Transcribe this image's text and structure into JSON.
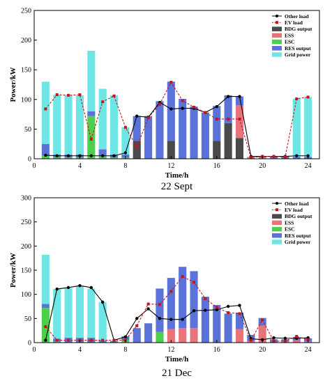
{
  "legend_labels": [
    "Other load",
    "EV load",
    "BDG output",
    "ESS",
    "ESC",
    "RES output",
    "Grid power"
  ],
  "colors": {
    "bdg": "#4a4a4a",
    "ess": "#e8737a",
    "esc": "#4ccf4a",
    "res": "#5b73d8",
    "grid": "#6fe6e6",
    "other_load": "#000000",
    "ev_load": "#c0171c",
    "frame": "#000000"
  },
  "chart_data": [
    {
      "type": "bar",
      "caption": "22 Sept",
      "xlabel": "Time/h",
      "ylabel": "Power/kW",
      "xlim": [
        0,
        25
      ],
      "ylim": [
        0,
        250
      ],
      "xticks": [
        0,
        4,
        8,
        12,
        16,
        20,
        24
      ],
      "yticks": [
        0,
        50,
        100,
        150,
        200,
        250
      ],
      "legend_position": "top-right",
      "categories": [
        1,
        2,
        3,
        4,
        5,
        6,
        7,
        8,
        9,
        10,
        11,
        12,
        13,
        14,
        15,
        16,
        17,
        18,
        19,
        20,
        21,
        22,
        23,
        24
      ],
      "stack_series": [
        {
          "key": "bdg",
          "name": "BDG output",
          "values": [
            0,
            0,
            0,
            0,
            0,
            0,
            0,
            0,
            30,
            0,
            0,
            30,
            0,
            0,
            0,
            30,
            60,
            35,
            0,
            0,
            0,
            0,
            0,
            0
          ]
        },
        {
          "key": "ess",
          "name": "ESS",
          "values": [
            0,
            0,
            0,
            0,
            0,
            0,
            0,
            0,
            0,
            0,
            0,
            0,
            0,
            0,
            0,
            0,
            0,
            55,
            2,
            2,
            0,
            0,
            0,
            0
          ]
        },
        {
          "key": "esc",
          "name": "ESC",
          "values": [
            5,
            3,
            2,
            2,
            72,
            4,
            2,
            2,
            0,
            0,
            0,
            0,
            0,
            0,
            0,
            0,
            0,
            0,
            0,
            0,
            0,
            0,
            0,
            0
          ]
        },
        {
          "key": "res",
          "name": "RES output",
          "values": [
            20,
            4,
            5,
            5,
            8,
            12,
            5,
            5,
            42,
            72,
            97,
            100,
            101,
            88,
            78,
            59,
            47,
            15,
            1,
            2,
            4,
            4,
            3,
            3
          ]
        },
        {
          "key": "grid",
          "name": "Grid power",
          "values": [
            105,
            101,
            100,
            100,
            102,
            102,
            100,
            46,
            0,
            0,
            0,
            0,
            0,
            0,
            0,
            0,
            0,
            0,
            0,
            0,
            0,
            0,
            98,
            101
          ]
        }
      ],
      "line_series": [
        {
          "key": "other_load",
          "name": "Other load",
          "marker": "circle",
          "style": "solid",
          "values": [
            6,
            5,
            5,
            5,
            5,
            5,
            5,
            10,
            72,
            70,
            95,
            84,
            85,
            85,
            78,
            88,
            105,
            105,
            4,
            4,
            4,
            4,
            5,
            5
          ]
        },
        {
          "key": "ev_load",
          "name": "EV load",
          "marker": "square",
          "style": "dashed",
          "values": [
            84,
            108,
            107,
            108,
            33,
            96,
            106,
            53,
            20,
            69,
            92,
            129,
            98,
            87,
            78,
            67,
            67,
            67,
            2,
            4,
            4,
            3,
            101,
            104
          ]
        }
      ]
    },
    {
      "type": "bar",
      "caption": "21 Dec",
      "xlabel": "Time/h",
      "ylabel": "Power/kW",
      "xlim": [
        0,
        25
      ],
      "ylim": [
        0,
        300
      ],
      "xticks": [
        0,
        4,
        8,
        12,
        16,
        20,
        24
      ],
      "yticks": [
        0,
        50,
        100,
        150,
        200,
        250,
        300
      ],
      "legend_position": "top-right",
      "categories": [
        1,
        2,
        3,
        4,
        5,
        6,
        7,
        8,
        9,
        10,
        11,
        12,
        13,
        14,
        15,
        16,
        17,
        18,
        19,
        20,
        21,
        22,
        23,
        24
      ],
      "stack_series": [
        {
          "key": "bdg",
          "name": "BDG output",
          "values": [
            0,
            0,
            0,
            0,
            0,
            0,
            0,
            0,
            0,
            0,
            0,
            0,
            0,
            0,
            0,
            0,
            0,
            0,
            0,
            0,
            0,
            0,
            0,
            0
          ]
        },
        {
          "key": "ess",
          "name": "ESS",
          "values": [
            0,
            0,
            0,
            0,
            0,
            0,
            0,
            0,
            0,
            0,
            0,
            28,
            30,
            30,
            0,
            0,
            0,
            28,
            3,
            35,
            0,
            2,
            5,
            2
          ]
        },
        {
          "key": "esc",
          "name": "ESC",
          "values": [
            72,
            2,
            0,
            0,
            0,
            0,
            0,
            5,
            0,
            0,
            22,
            0,
            0,
            0,
            0,
            0,
            0,
            0,
            0,
            0,
            0,
            0,
            0,
            0
          ]
        },
        {
          "key": "res",
          "name": "RES output",
          "values": [
            8,
            6,
            10,
            10,
            10,
            4,
            3,
            8,
            30,
            40,
            90,
            106,
            127,
            118,
            95,
            78,
            60,
            34,
            13,
            16,
            7,
            5,
            6,
            7
          ]
        },
        {
          "key": "grid",
          "name": "Grid power",
          "values": [
            102,
            103,
            103,
            107,
            102,
            80,
            0,
            0,
            0,
            0,
            0,
            0,
            0,
            0,
            0,
            0,
            0,
            0,
            0,
            0,
            0,
            0,
            0,
            0
          ]
        }
      ],
      "line_series": [
        {
          "key": "other_load",
          "name": "Other load",
          "marker": "circle",
          "style": "solid",
          "values": [
            5,
            111,
            114,
            118,
            114,
            84,
            5,
            12,
            50,
            70,
            50,
            48,
            48,
            66,
            67,
            68,
            75,
            77,
            8,
            6,
            10,
            9,
            9,
            10
          ]
        },
        {
          "key": "ev_load",
          "name": "EV load",
          "marker": "square",
          "style": "dashed",
          "values": [
            33,
            5,
            5,
            5,
            5,
            5,
            5,
            5,
            35,
            80,
            79,
            106,
            137,
            125,
            91,
            73,
            62,
            60,
            5,
            47,
            3,
            3,
            13,
            6
          ]
        }
      ]
    }
  ]
}
